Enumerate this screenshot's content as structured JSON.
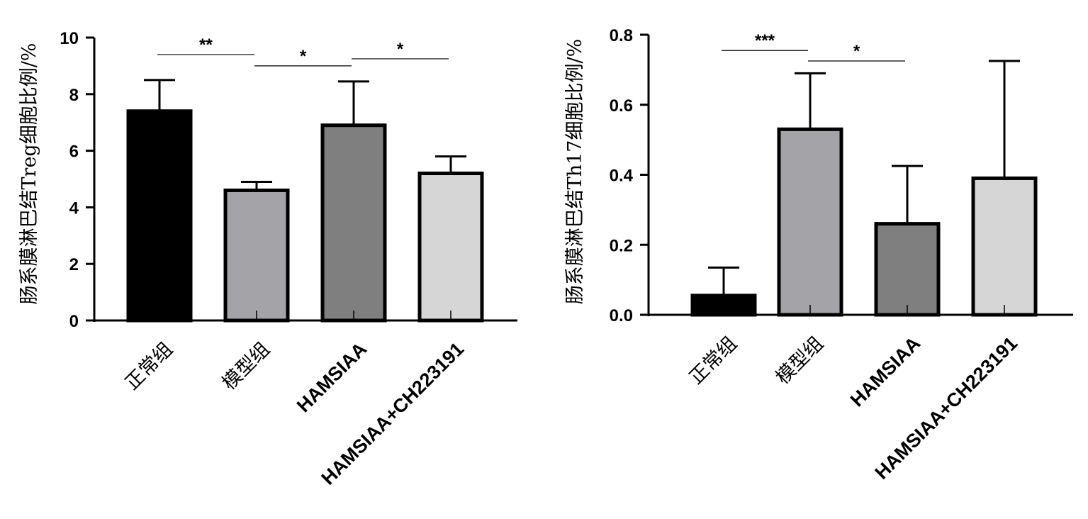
{
  "chart_data": [
    {
      "type": "bar",
      "ylabel": "肠系膜淋巴结Treg细胞比例/%",
      "xlabel": "",
      "categories": [
        "正常组",
        "模型组",
        "HAMSIAA",
        "HAMSIAA+CH223191"
      ],
      "values": [
        7.4,
        4.6,
        6.9,
        5.2
      ],
      "errors": [
        1.1,
        0.3,
        1.55,
        0.6
      ],
      "ylim": [
        0,
        10
      ],
      "yticks": [
        "0",
        "2",
        "4",
        "6",
        "8",
        "10"
      ],
      "ytick_values": [
        0,
        2,
        4,
        6,
        8,
        10
      ],
      "bar_colors": [
        "#000000",
        "#a3a3a8",
        "#7f7f7f",
        "#d6d6d6"
      ],
      "significance": [
        {
          "from": 0,
          "to": 1,
          "label": "**",
          "y": 9.4
        },
        {
          "from": 1,
          "to": 2,
          "label": "*",
          "y": 9.0
        },
        {
          "from": 2,
          "to": 3,
          "label": "*",
          "y": 9.25
        }
      ]
    },
    {
      "type": "bar",
      "ylabel": "肠系膜淋巴结Th17细胞比例/%",
      "xlabel": "",
      "categories": [
        "正常组",
        "模型组",
        "HAMSIAA",
        "HAMSIAA+CH223191"
      ],
      "values": [
        0.055,
        0.53,
        0.26,
        0.39
      ],
      "errors": [
        0.08,
        0.16,
        0.165,
        0.335
      ],
      "ylim": [
        0,
        0.8
      ],
      "yticks": [
        "0.0",
        "0.2",
        "0.4",
        "0.6",
        "0.8"
      ],
      "ytick_values": [
        0,
        0.2,
        0.4,
        0.6,
        0.8
      ],
      "bar_colors": [
        "#000000",
        "#a3a3a8",
        "#7f7f7f",
        "#d6d6d6"
      ],
      "significance": [
        {
          "from": 0,
          "to": 1,
          "label": "***",
          "y": 0.755
        },
        {
          "from": 1,
          "to": 2,
          "label": "*",
          "y": 0.725
        }
      ]
    }
  ]
}
